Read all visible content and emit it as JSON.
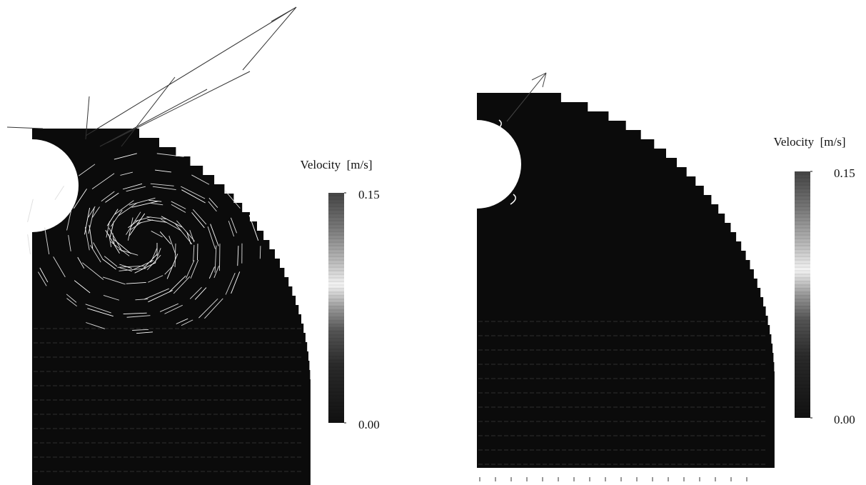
{
  "chart_data": [
    {
      "type": "vector-field",
      "colorbar_label": "Velocity  [m/s]",
      "clim": [
        0,
        0.15
      ],
      "cticks": [
        {
          "value": 0,
          "label": "0.00"
        },
        0.15
      ]
    },
    {
      "type": "vector-field",
      "colorbar_label": "Velocity  [m/s]",
      "clim": [
        0,
        0.15
      ],
      "cticks": [
        {
          "value": 0,
          "label": "0.00"
        },
        0.15
      ]
    }
  ]
}
